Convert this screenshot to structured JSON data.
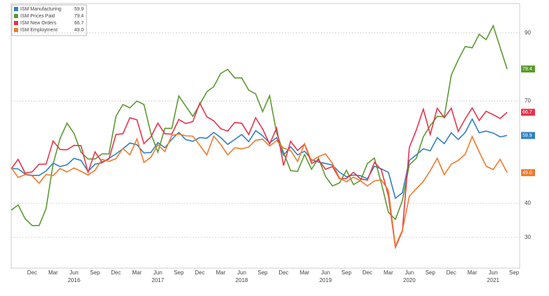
{
  "chart_data": {
    "type": "line",
    "categories": [
      null,
      null,
      null,
      "Dec",
      null,
      null,
      "Mar",
      null,
      null,
      "Jun",
      null,
      null,
      "Sep",
      null,
      null,
      "Dec",
      null,
      null,
      "Mar",
      null,
      null,
      "Jun",
      null,
      null,
      "Sep",
      null,
      null,
      "Dec",
      null,
      null,
      "Mar",
      null,
      null,
      "Jun",
      null,
      null,
      "Sep",
      null,
      null,
      "Dec",
      null,
      null,
      "Mar",
      null,
      null,
      "Jun",
      null,
      null,
      "Sep",
      null,
      null,
      "Dec",
      null,
      null,
      "Mar",
      null,
      null,
      "Jun",
      null,
      null,
      "Sep",
      null,
      null,
      "Dec",
      null,
      null,
      "Mar",
      null,
      null,
      "Jun",
      null,
      null,
      "Sep"
    ],
    "category_years": [
      null,
      null,
      null,
      null,
      null,
      null,
      null,
      null,
      null,
      "2016",
      null,
      null,
      null,
      null,
      null,
      null,
      null,
      null,
      null,
      null,
      null,
      "2017",
      null,
      null,
      null,
      null,
      null,
      null,
      null,
      null,
      null,
      null,
      null,
      "2018",
      null,
      null,
      null,
      null,
      null,
      null,
      null,
      null,
      null,
      null,
      null,
      "2019",
      null,
      null,
      null,
      null,
      null,
      null,
      null,
      null,
      null,
      null,
      null,
      "2020",
      null,
      null,
      null,
      null,
      null,
      null,
      null,
      null,
      null,
      null,
      null,
      "2021",
      null,
      null,
      null
    ],
    "ylim": [
      21,
      98
    ],
    "yticks": [
      30,
      40,
      70,
      90
    ],
    "grid": true,
    "series": [
      {
        "name": "ISM Manufacturing",
        "legend_value": "59.9",
        "color": "#2f7fc1",
        "values": [
          50.2,
          50.1,
          48.6,
          48.2,
          48.2,
          49.5,
          51.8,
          50.8,
          51.3,
          53.2,
          52.6,
          49.4,
          51.5,
          51.9,
          53.2,
          54.5,
          56,
          57.7,
          57.2,
          54.8,
          54.9,
          57.8,
          56.3,
          58.8,
          60.8,
          58.7,
          58.2,
          59.3,
          59.1,
          60.8,
          59.3,
          57.3,
          58.7,
          60.2,
          58.1,
          61.3,
          59.8,
          57.7,
          59.3,
          54.1,
          56.6,
          54.2,
          55.3,
          52.8,
          52.1,
          51.7,
          51.2,
          49.1,
          47.8,
          48.3,
          48.1,
          47.2,
          50.9,
          50.1,
          49.1,
          41.5,
          43.1,
          52.6,
          54.2,
          56,
          55.4,
          59.3,
          57.5,
          60.7,
          58.7,
          60.8,
          64.7,
          60.7,
          61.2,
          60.6,
          59.5,
          59.9,
          null
        ]
      },
      {
        "name": "ISM Prices Paid",
        "legend_value": "79.4",
        "color": "#5a9a2e",
        "values": [
          38,
          39.5,
          35.5,
          33.5,
          33.5,
          38.5,
          51.5,
          59,
          63.5,
          60.5,
          55,
          53,
          53,
          54.5,
          54.5,
          65.5,
          69,
          68,
          70,
          69,
          60.5,
          55,
          62,
          62,
          71.5,
          68.5,
          65.5,
          69,
          72.7,
          74.2,
          78.1,
          79.3,
          76.8,
          76.8,
          73.2,
          72.1,
          66.9,
          71.6,
          60.7,
          54.9,
          49.6,
          49.4,
          54.3,
          50,
          53.2,
          47.9,
          45.1,
          46,
          49.7,
          45.5,
          46.7,
          51.7,
          53.3,
          45.9,
          37.4,
          35.3,
          40.8,
          51.3,
          53.2,
          59.5,
          62.8,
          65.5,
          65.4,
          77.6,
          82.1,
          86,
          85.6,
          89.6,
          88,
          92.1,
          85.7,
          79.4,
          null
        ]
      },
      {
        "name": "ISM New Orders",
        "legend_value": "66.7",
        "color": "#e8334a",
        "values": [
          50.1,
          52.9,
          48.9,
          49.2,
          51.5,
          51.5,
          58.3,
          55.8,
          55.7,
          57,
          56.9,
          49.1,
          55.1,
          52.1,
          53,
          60.2,
          60.4,
          65.1,
          64.5,
          57.5,
          59.5,
          63.5,
          60.4,
          60.3,
          64.6,
          63.4,
          64,
          69.4,
          65.4,
          64.2,
          61.9,
          61.2,
          63.7,
          63.5,
          60.2,
          65.1,
          61.8,
          57.4,
          62.1,
          51.1,
          58.2,
          55.5,
          57.4,
          51.7,
          52.7,
          50,
          50.8,
          47.2,
          47.3,
          49.1,
          47.2,
          46.8,
          52,
          49.8,
          42.2,
          27.1,
          31.8,
          56.4,
          61.5,
          67.6,
          60.2,
          67.9,
          65.1,
          67.9,
          61.1,
          64.8,
          68,
          64.3,
          67,
          66,
          64.9,
          66.7,
          null
        ]
      },
      {
        "name": "ISM Employment",
        "legend_value": "49.0",
        "color": "#f07a2a",
        "values": [
          50.5,
          47.6,
          48.4,
          48.1,
          45.9,
          48.5,
          48.1,
          50.2,
          49.2,
          50.4,
          49.4,
          48.3,
          49.7,
          52.9,
          52.3,
          53.1,
          56.1,
          54.2,
          58.9,
          52,
          53.5,
          57.2,
          55.2,
          59.9,
          60.3,
          59.8,
          59.7,
          57,
          54.2,
          59.7,
          57.3,
          54.2,
          56.3,
          56,
          56.5,
          58.5,
          58.8,
          56.8,
          58.4,
          56.2,
          55.5,
          52.3,
          57.5,
          52.4,
          53.7,
          54.5,
          51.7,
          47.4,
          46.3,
          47.7,
          46.6,
          45.1,
          46.6,
          46.9,
          43.8,
          27.5,
          32.1,
          42.1,
          44.3,
          46.4,
          49.6,
          53.2,
          48.4,
          51.5,
          52.6,
          54.4,
          59.6,
          55.1,
          50.9,
          49.9,
          52.9,
          49,
          null
        ]
      }
    ]
  }
}
